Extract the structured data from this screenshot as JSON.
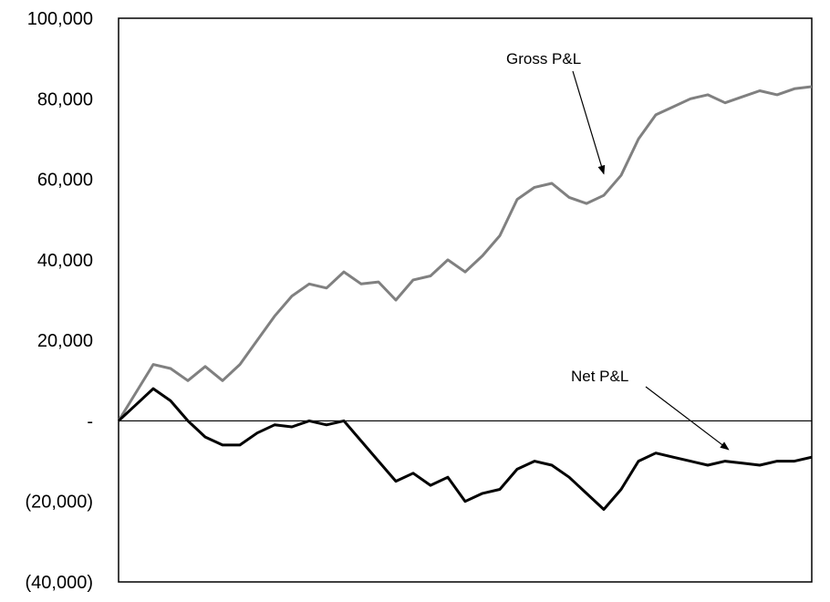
{
  "chart_data": {
    "type": "line",
    "title": "",
    "xlabel": "",
    "ylabel": "",
    "ylim": [
      -40000,
      100000
    ],
    "yticks": [
      {
        "value": 100000,
        "label": "100,000"
      },
      {
        "value": 80000,
        "label": "80,000"
      },
      {
        "value": 60000,
        "label": "60,000"
      },
      {
        "value": 40000,
        "label": "40,000"
      },
      {
        "value": 20000,
        "label": "20,000"
      },
      {
        "value": 0,
        "label": "-"
      },
      {
        "value": -20000,
        "label": "(20,000)"
      },
      {
        "value": -40000,
        "label": "(40,000)"
      }
    ],
    "grid": false,
    "legend": "none",
    "x": [
      0,
      5,
      10,
      15,
      20,
      25,
      30,
      35,
      40,
      45,
      50,
      55,
      60,
      65,
      70,
      75,
      80,
      85,
      90,
      95,
      100,
      105,
      110,
      115,
      120,
      125,
      130,
      135,
      140,
      145,
      150,
      155,
      160,
      165,
      170,
      175,
      180,
      185,
      190,
      195,
      200
    ],
    "series": [
      {
        "color": "#808080",
        "values": [
          0,
          7000,
          14000,
          13000,
          10000,
          13500,
          10000,
          14000,
          20000,
          26000,
          31000,
          34000,
          33000,
          37000,
          34000,
          34500,
          30000,
          35000,
          36000,
          40000,
          37000,
          41000,
          46000,
          55000,
          58000,
          59000,
          55500,
          54000,
          56000,
          61000,
          70000,
          76000,
          78000,
          80000,
          81000,
          79000,
          80500,
          82000,
          81000,
          82500,
          83000
        ]
      },
      {
        "color": "#000000",
        "values": [
          0,
          4000,
          8000,
          5000,
          0,
          -4000,
          -6000,
          -6000,
          -3000,
          -1000,
          -1500,
          0,
          -1000,
          0,
          -5000,
          -10000,
          -15000,
          -13000,
          -16000,
          -14000,
          -20000,
          -18000,
          -17000,
          -12000,
          -10000,
          -11000,
          -14000,
          -18000,
          -22000,
          -17000,
          -10000,
          -8000,
          -9000,
          -10000,
          -11000,
          -10000,
          -10500,
          -11000,
          -10000,
          -10000,
          -9000
        ]
      }
    ],
    "annotations": [
      {
        "text": "Gross P&L",
        "x": 140,
        "y": 60000
      },
      {
        "text": "Net P&L",
        "x": 176,
        "y": -8500
      }
    ]
  }
}
